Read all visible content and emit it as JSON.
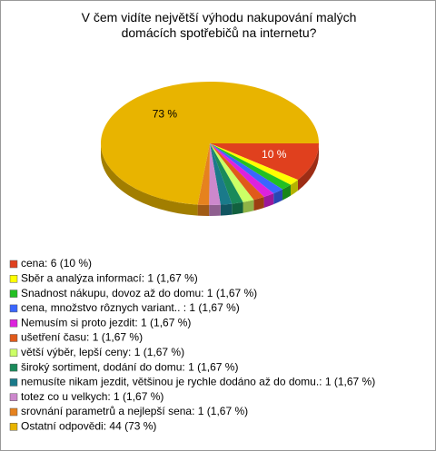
{
  "chart_data": {
    "type": "pie",
    "title": "V čem vidíte největší výhodu nakupování malých domácích spotřebičů na internetu?",
    "categories": [
      "cena: 6 (10 %)",
      "Sběr a analýza informací: 1 (1,67 %)",
      "Snadnost nákupu, dovoz až do domu: 1 (1,67 %)",
      "cena, množstvo rôznych variant.. : 1 (1,67 %)",
      "Nemusím si proto jezdit: 1 (1,67 %)",
      "ušetření času: 1 (1,67 %)",
      "větší výběr, lepší ceny: 1 (1,67 %)",
      "široký sortiment, dodání do domu: 1 (1,67 %)",
      "nemusíte nikam jezdit, většinou je rychle dodáno až do domu.: 1 (1,67 %)",
      "totez co u velkych: 1 (1,67 %)",
      "srovnání parametrů a nejlepší sena: 1 (1,67 %)",
      "Ostatní odpovědi: 44 (73 %)"
    ],
    "values": [
      10,
      1.67,
      1.67,
      1.67,
      1.67,
      1.67,
      1.67,
      1.67,
      1.67,
      1.67,
      1.67,
      73
    ],
    "value_labels": [
      "10 %",
      null,
      null,
      null,
      null,
      null,
      null,
      null,
      null,
      null,
      null,
      "73 %"
    ],
    "colors": [
      "#e0401e",
      "#ffff00",
      "#22c022",
      "#3a66ff",
      "#dd22dd",
      "#e05a1a",
      "#ccff66",
      "#1a8a5a",
      "#1a7a8a",
      "#cc88cc",
      "#e6821e",
      "#e8b400"
    ]
  }
}
